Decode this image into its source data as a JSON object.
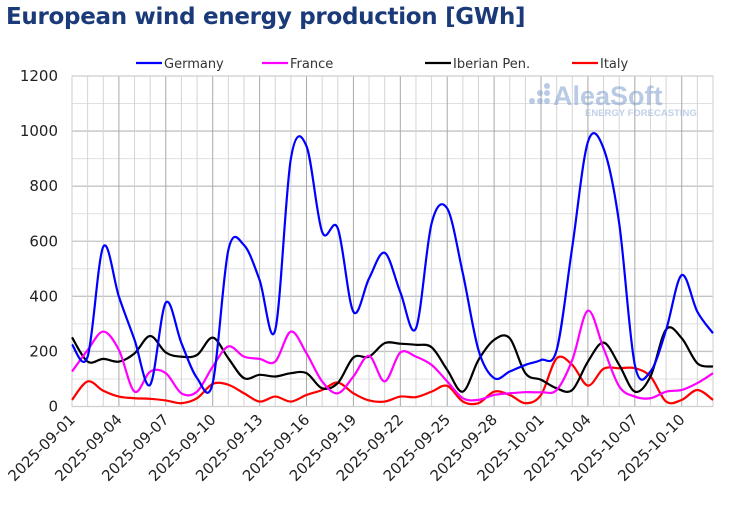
{
  "chart_data": {
    "type": "line",
    "title": "European wind energy production [GWh]",
    "xlabel": "",
    "ylabel": "",
    "ylim": [
      0,
      1200
    ],
    "yticks": [
      0,
      200,
      400,
      600,
      800,
      1000,
      1200
    ],
    "x_start": "2025-09-01",
    "x_end": "2025-10-12",
    "xtick_labels": [
      "2025-09-01",
      "2025-09-04",
      "2025-09-07",
      "2025-09-10",
      "2025-09-13",
      "2025-09-16",
      "2025-09-19",
      "2025-09-22",
      "2025-09-25",
      "2025-09-28",
      "2025-10-01",
      "2025-10-04",
      "2025-10-07",
      "2025-10-10"
    ],
    "grid": true,
    "legend_position": "top",
    "watermark": {
      "brand": "AleaSoft",
      "tagline": "ENERGY FORECASTING"
    },
    "series": [
      {
        "name": "Germany",
        "color": "#0000ff",
        "values": [
          225,
          181,
          580,
          399,
          242,
          79,
          377,
          230,
          103,
          85,
          568,
          586,
          459,
          278,
          900,
          945,
          634,
          647,
          344,
          465,
          558,
          415,
          284,
          665,
          719,
          483,
          205,
          103,
          127,
          151,
          169,
          205,
          580,
          961,
          937,
          665,
          151,
          127,
          278,
          477,
          344,
          266
        ]
      },
      {
        "name": "France",
        "color": "#ff00ff",
        "values": [
          127,
          205,
          272,
          205,
          54,
          127,
          121,
          48,
          54,
          145,
          218,
          181,
          173,
          163,
          272,
          193,
          91,
          48,
          109,
          184,
          91,
          196,
          181,
          151,
          91,
          30,
          24,
          42,
          48,
          52,
          52,
          60,
          169,
          348,
          211,
          73,
          36,
          30,
          54,
          60,
          85,
          121
        ]
      },
      {
        "name": "Iberian Pen.",
        "color": "#000000",
        "values": [
          251,
          163,
          173,
          163,
          193,
          256,
          196,
          181,
          187,
          250,
          175,
          103,
          115,
          109,
          121,
          121,
          66,
          85,
          178,
          181,
          230,
          228,
          224,
          215,
          133,
          54,
          169,
          242,
          248,
          121,
          97,
          66,
          60,
          163,
          232,
          151,
          54,
          109,
          280,
          248,
          157,
          145
        ]
      },
      {
        "name": "Italy",
        "color": "#ff0000",
        "values": [
          24,
          91,
          57,
          36,
          30,
          28,
          22,
          12,
          30,
          82,
          79,
          48,
          18,
          36,
          18,
          42,
          60,
          87,
          48,
          22,
          18,
          36,
          34,
          54,
          75,
          18,
          12,
          54,
          42,
          12,
          42,
          175,
          151,
          76,
          137,
          139,
          139,
          109,
          18,
          24,
          60,
          24
        ]
      }
    ]
  }
}
